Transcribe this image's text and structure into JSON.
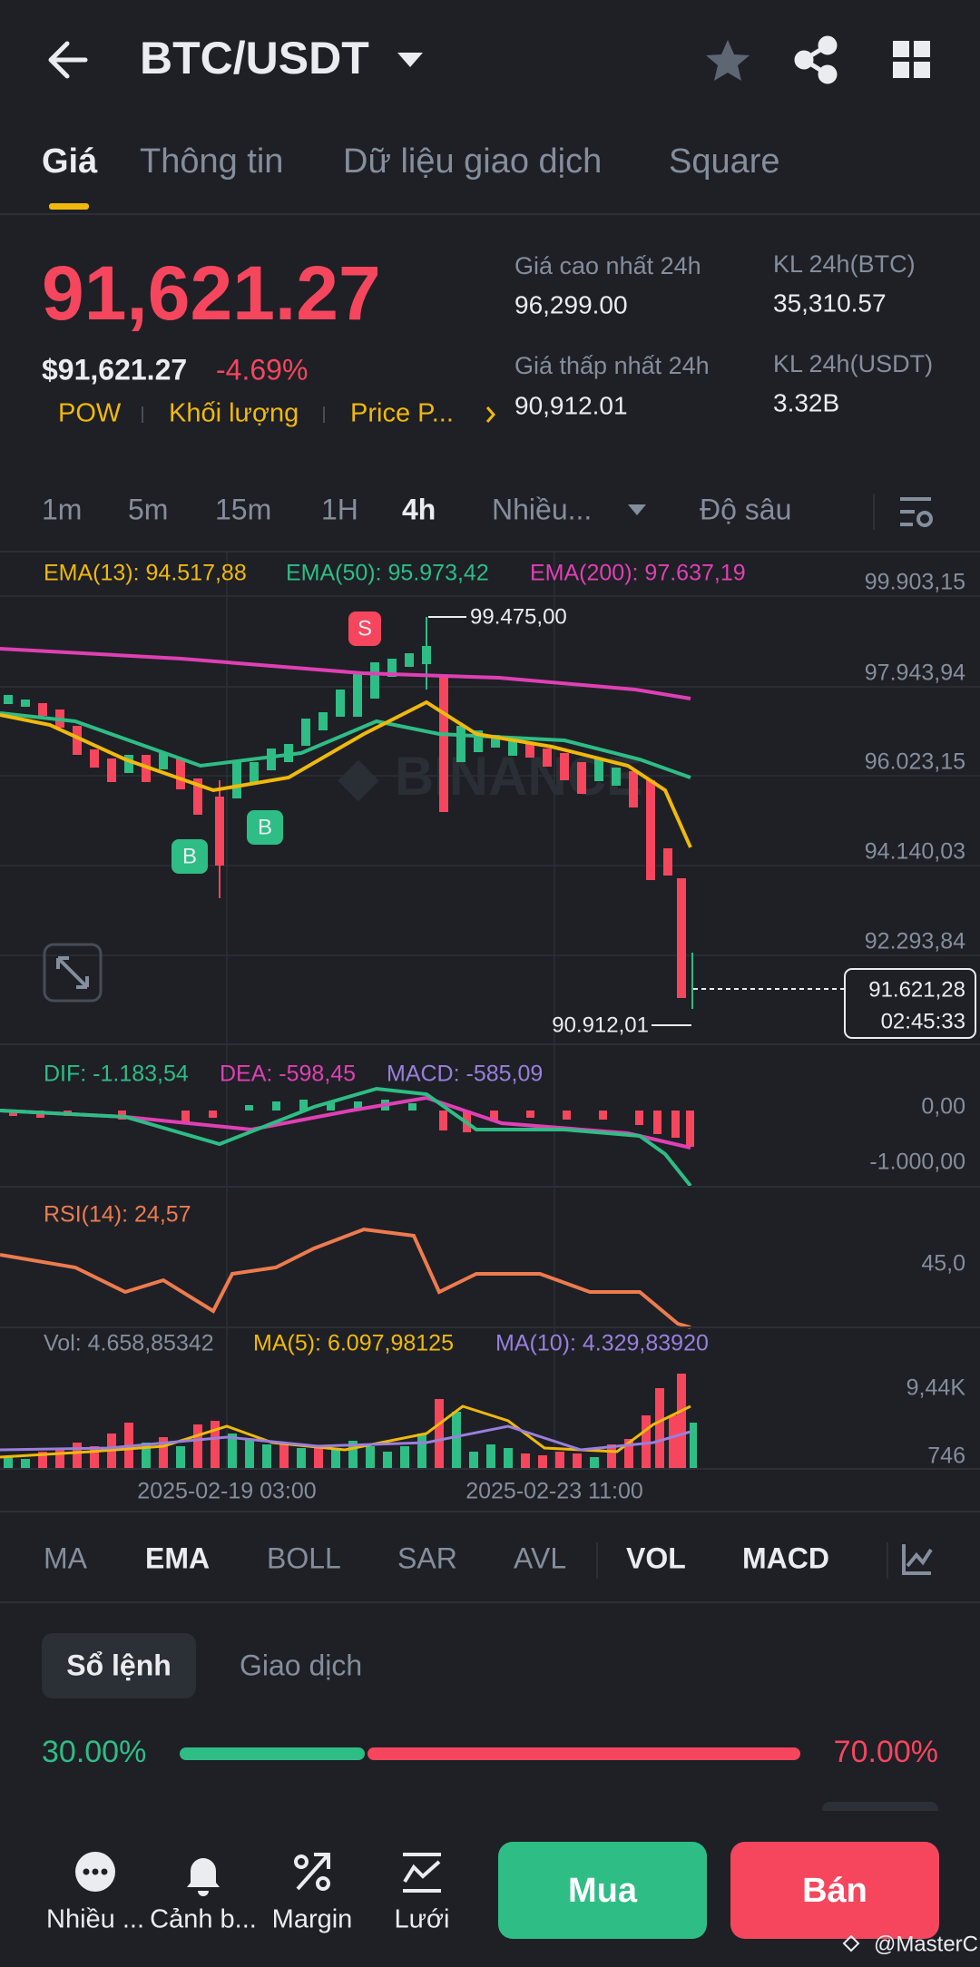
{
  "header": {
    "title": "BTC/USDT"
  },
  "tabs": [
    "Giá",
    "Thông tin",
    "Dữ liệu giao dịch",
    "Square"
  ],
  "price": {
    "last": "91,621.27",
    "usd": "$91,621.27",
    "change": "-4.69%",
    "tags": [
      "POW",
      "Khối lượng",
      "Price P..."
    ]
  },
  "stats": [
    {
      "label": "Giá cao nhất 24h",
      "value": "96,299.00"
    },
    {
      "label": "KL 24h(BTC)",
      "value": "35,310.57"
    },
    {
      "label": "Giá thấp nhất 24h",
      "value": "90,912.01"
    },
    {
      "label": "KL 24h(USDT)",
      "value": "3.32B"
    }
  ],
  "intervals": [
    "1m",
    "5m",
    "15m",
    "1H",
    "4h",
    "Nhiều...",
    "Độ sâu"
  ],
  "chart": {
    "ema_legend": [
      "EMA(13): 94.517,88",
      "EMA(50): 95.973,42",
      "EMA(200): 97.637,19"
    ],
    "price_axis": [
      "99.903,15",
      "97.943,94",
      "96.023,15",
      "94.140,03",
      "92.293,84"
    ],
    "high_label": "99.475,00",
    "low_label": "90.912,01",
    "last_price": "91.621,28",
    "countdown": "02:45:33",
    "markers": [
      "S",
      "B",
      "B"
    ],
    "macd_legend": [
      "DIF: -1.183,54",
      "DEA: -598,45",
      "MACD: -585,09"
    ],
    "macd_axis": [
      "0,00",
      "-1.000,00"
    ],
    "rsi_legend": "RSI(14): 24,57",
    "rsi_axis": [
      "45,0"
    ],
    "vol_legend": [
      "Vol: 4.658,85342",
      "MA(5): 6.097,98125",
      "MA(10): 4.329,83920"
    ],
    "vol_axis": [
      "9,44K",
      "746"
    ],
    "dates": [
      "2025-02-19 03:00",
      "2025-02-23 11:00"
    ]
  },
  "indicators": [
    "MA",
    "EMA",
    "BOLL",
    "SAR",
    "AVL",
    "VOL",
    "MACD"
  ],
  "order_book": {
    "tabs": [
      "Sổ lệnh",
      "Giao dịch"
    ],
    "buy": "30.00%",
    "sell": "70.00%"
  },
  "nav": [
    "Nhiều ...",
    "Cảnh b...",
    "Margin",
    "Lưới"
  ],
  "buy": "Mua",
  "sell": "Bán",
  "watermark": "@MasterC"
}
